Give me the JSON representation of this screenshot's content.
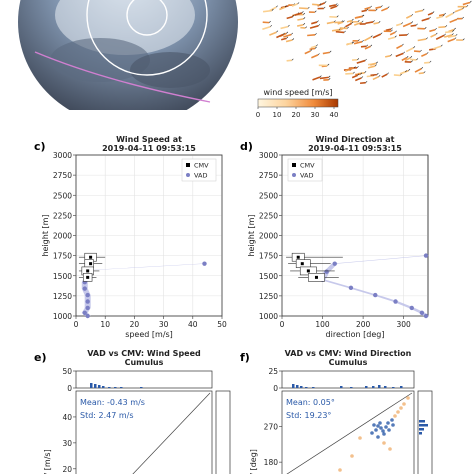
{
  "panel_labels": {
    "c": "c)",
    "d": "d)",
    "e": "e)",
    "f": "f)"
  },
  "colorbar": {
    "label": "wind speed [m/s]",
    "ticks": [
      "0",
      "10",
      "20",
      "30",
      "40"
    ]
  },
  "legend": {
    "cmv": "CMV",
    "vad": "VAD"
  },
  "colors": {
    "cmv": "#000000",
    "vad": "#7b7fc4",
    "vad_band": "#b9bbe6",
    "scatter_blue": "#2b5aa8",
    "scatter_orange": "#f0b070",
    "stats_text": "#2b5aa8"
  },
  "chart_data": [
    {
      "id": "c",
      "type": "scatter",
      "title": "Wind Speed at",
      "subtitle": "2019-04-11 09:53:15",
      "xlabel": "speed [m/s]",
      "ylabel": "height [m]",
      "xlim": [
        0,
        50
      ],
      "ylim": [
        1000,
        3000
      ],
      "xticks": [
        0,
        10,
        20,
        30,
        40,
        50
      ],
      "yticks": [
        1000,
        1250,
        1500,
        1750,
        2000,
        2250,
        2500,
        2750,
        3000
      ],
      "grid": true,
      "legend_position": "top-right",
      "series": [
        {
          "name": "CMV",
          "kind": "box",
          "points": [
            {
              "y": 1730,
              "median": 5,
              "q1": 3,
              "q3": 7,
              "whisker": [
                1,
                10
              ]
            },
            {
              "y": 1650,
              "median": 5,
              "q1": 3,
              "q3": 6,
              "whisker": [
                1,
                9
              ]
            },
            {
              "y": 1560,
              "median": 4,
              "q1": 2,
              "q3": 6,
              "whisker": [
                1,
                8
              ]
            },
            {
              "y": 1480,
              "median": 4,
              "q1": 2.5,
              "q3": 5.5,
              "whisker": [
                1,
                7
              ]
            }
          ]
        },
        {
          "name": "VAD",
          "kind": "scatter",
          "x": [
            44,
            5,
            4,
            3,
            3,
            4,
            4,
            4,
            3,
            4
          ],
          "y": [
            1650,
            1570,
            1500,
            1420,
            1340,
            1260,
            1180,
            1100,
            1040,
            1000
          ]
        }
      ]
    },
    {
      "id": "d",
      "type": "scatter",
      "title": "Wind Direction at",
      "subtitle": "2019-04-11 09:53:15",
      "xlabel": "direction [deg]",
      "ylabel": "height [m]",
      "xlim": [
        0,
        360
      ],
      "ylim": [
        1000,
        3000
      ],
      "xticks": [
        0,
        100,
        200,
        300
      ],
      "yticks": [
        1000,
        1250,
        1500,
        1750,
        2000,
        2250,
        2500,
        2750,
        3000
      ],
      "grid": true,
      "legend_position": "top-left",
      "series": [
        {
          "name": "CMV",
          "kind": "box",
          "points": [
            {
              "y": 1730,
              "median": 40,
              "q1": 25,
              "q3": 55,
              "whisker": [
                10,
                150
              ]
            },
            {
              "y": 1650,
              "median": 50,
              "q1": 35,
              "q3": 70,
              "whisker": [
                15,
                120
              ]
            },
            {
              "y": 1560,
              "median": 65,
              "q1": 45,
              "q3": 85,
              "whisker": [
                20,
                130
              ]
            },
            {
              "y": 1480,
              "median": 85,
              "q1": 65,
              "q3": 105,
              "whisker": [
                40,
                140
              ]
            }
          ]
        },
        {
          "name": "VAD",
          "kind": "scatter",
          "x": [
            355,
            130,
            110,
            100,
            170,
            230,
            280,
            320,
            345,
            355
          ],
          "y": [
            1750,
            1650,
            1550,
            1450,
            1350,
            1260,
            1180,
            1100,
            1040,
            1000
          ]
        }
      ]
    },
    {
      "id": "e",
      "type": "scatter",
      "title": "VAD vs CMV: Wind Speed",
      "subtitle": "Cumulus",
      "ylabel": "CMV [m/s]",
      "top_histogram": {
        "ylim": [
          0,
          50
        ],
        "yticks": [
          0,
          50
        ]
      },
      "ylim": [
        18,
        50
      ],
      "yticks": [
        20,
        30,
        40
      ],
      "annotations": [
        "Mean: -0.43 m/s",
        "Std:  2.47 m/s"
      ]
    },
    {
      "id": "f",
      "type": "scatter",
      "title": "VAD vs CMV: Wind Direction",
      "subtitle": "Cumulus",
      "ylabel": "CMV [deg]",
      "top_histogram": {
        "ylim": [
          0,
          25
        ],
        "yticks": [
          0,
          25
        ]
      },
      "ylim": [
        150,
        360
      ],
      "yticks": [
        180,
        270
      ],
      "annotations": [
        "Mean: 0.05°",
        "Std:  19.23°"
      ]
    }
  ]
}
